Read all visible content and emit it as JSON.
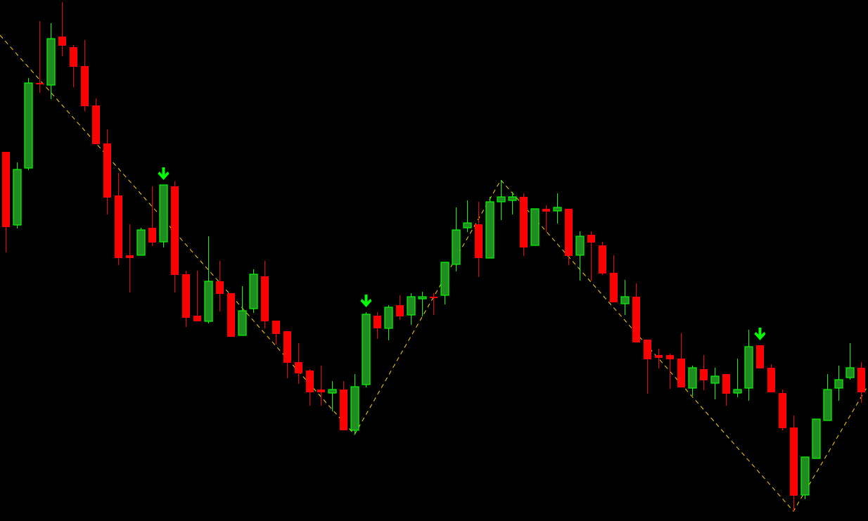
{
  "chart_data": {
    "type": "candlestick",
    "title": "",
    "xlabel": "",
    "ylabel": "",
    "ylim": [
      0,
      741
    ],
    "grid": false,
    "colors": {
      "background": "#000000",
      "bull_fill": "#228B22",
      "bull_outline": "#00FF00",
      "bear": "#FF0000",
      "zigzag": "#FFD700",
      "signal_arrow": "#00FF00"
    },
    "candles": [
      {
        "o": 525,
        "h": 525,
        "l": 382,
        "c": 418
      },
      {
        "o": 421,
        "h": 510,
        "l": 416,
        "c": 500
      },
      {
        "o": 502,
        "h": 630,
        "l": 499,
        "c": 623
      },
      {
        "o": 623,
        "h": 711,
        "l": 609,
        "c": 623
      },
      {
        "o": 620,
        "h": 708,
        "l": 600,
        "c": 686
      },
      {
        "o": 689,
        "h": 738,
        "l": 661,
        "c": 676
      },
      {
        "o": 674,
        "h": 677,
        "l": 617,
        "c": 646
      },
      {
        "o": 647,
        "h": 684,
        "l": 583,
        "c": 590
      },
      {
        "o": 591,
        "h": 601,
        "l": 536,
        "c": 536
      },
      {
        "o": 537,
        "h": 557,
        "l": 436,
        "c": 460
      },
      {
        "o": 463,
        "h": 495,
        "l": 364,
        "c": 374
      },
      {
        "o": 378,
        "h": 422,
        "l": 325,
        "c": 374
      },
      {
        "o": 378,
        "h": 417,
        "l": 378,
        "c": 414
      },
      {
        "o": 417,
        "h": 476,
        "l": 391,
        "c": 396
      },
      {
        "o": 397,
        "h": 478,
        "l": 389,
        "c": 478
      },
      {
        "o": 476,
        "h": 483,
        "l": 325,
        "c": 350
      },
      {
        "o": 351,
        "h": 356,
        "l": 276,
        "c": 289
      },
      {
        "o": 292,
        "h": 356,
        "l": 284,
        "c": 284
      },
      {
        "o": 284,
        "h": 405,
        "l": 281,
        "c": 341
      },
      {
        "o": 341,
        "h": 370,
        "l": 298,
        "c": 323
      },
      {
        "o": 324,
        "h": 324,
        "l": 262,
        "c": 262
      },
      {
        "o": 264,
        "h": 334,
        "l": 264,
        "c": 299
      },
      {
        "o": 302,
        "h": 358,
        "l": 296,
        "c": 351
      },
      {
        "o": 348,
        "h": 370,
        "l": 274,
        "c": 284
      },
      {
        "o": 285,
        "h": 285,
        "l": 251,
        "c": 266
      },
      {
        "o": 270,
        "h": 270,
        "l": 203,
        "c": 225
      },
      {
        "o": 226,
        "h": 253,
        "l": 195,
        "c": 210
      },
      {
        "o": 214,
        "h": 216,
        "l": 164,
        "c": 183
      },
      {
        "o": 187,
        "h": 221,
        "l": 164,
        "c": 183
      },
      {
        "o": 182,
        "h": 199,
        "l": 156,
        "c": 187
      },
      {
        "o": 187,
        "h": 199,
        "l": 129,
        "c": 129
      },
      {
        "o": 129,
        "h": 209,
        "l": 123,
        "c": 191
      },
      {
        "o": 194,
        "h": 297,
        "l": 190,
        "c": 294
      },
      {
        "o": 292,
        "h": 297,
        "l": 259,
        "c": 274
      },
      {
        "o": 274,
        "h": 307,
        "l": 257,
        "c": 304
      },
      {
        "o": 307,
        "h": 321,
        "l": 286,
        "c": 291
      },
      {
        "o": 293,
        "h": 324,
        "l": 279,
        "c": 319
      },
      {
        "o": 316,
        "h": 326,
        "l": 291,
        "c": 319
      },
      {
        "o": 319,
        "h": 324,
        "l": 293,
        "c": 319
      },
      {
        "o": 321,
        "h": 368,
        "l": 308,
        "c": 368
      },
      {
        "o": 365,
        "h": 446,
        "l": 355,
        "c": 414
      },
      {
        "o": 417,
        "h": 456,
        "l": 411,
        "c": 424
      },
      {
        "o": 422,
        "h": 454,
        "l": 347,
        "c": 374
      },
      {
        "o": 374,
        "h": 461,
        "l": 374,
        "c": 454
      },
      {
        "o": 454,
        "h": 485,
        "l": 428,
        "c": 461
      },
      {
        "o": 456,
        "h": 468,
        "l": 436,
        "c": 461
      },
      {
        "o": 461,
        "h": 466,
        "l": 377,
        "c": 389
      },
      {
        "o": 392,
        "h": 444,
        "l": 392,
        "c": 444
      },
      {
        "o": 444,
        "h": 449,
        "l": 411,
        "c": 440
      },
      {
        "o": 441,
        "h": 466,
        "l": 423,
        "c": 446
      },
      {
        "o": 444,
        "h": 444,
        "l": 364,
        "c": 377
      },
      {
        "o": 378,
        "h": 412,
        "l": 342,
        "c": 405
      },
      {
        "o": 407,
        "h": 412,
        "l": 342,
        "c": 396
      },
      {
        "o": 392,
        "h": 397,
        "l": 350,
        "c": 352
      },
      {
        "o": 353,
        "h": 378,
        "l": 311,
        "c": 311
      },
      {
        "o": 309,
        "h": 343,
        "l": 293,
        "c": 319
      },
      {
        "o": 319,
        "h": 338,
        "l": 254,
        "c": 254
      },
      {
        "o": 258,
        "h": 258,
        "l": 181,
        "c": 230
      },
      {
        "o": 236,
        "h": 245,
        "l": 217,
        "c": 232
      },
      {
        "o": 236,
        "h": 238,
        "l": 188,
        "c": 230
      },
      {
        "o": 231,
        "h": 267,
        "l": 190,
        "c": 190
      },
      {
        "o": 189,
        "h": 221,
        "l": 178,
        "c": 218
      },
      {
        "o": 216,
        "h": 236,
        "l": 186,
        "c": 200
      },
      {
        "o": 196,
        "h": 218,
        "l": 173,
        "c": 206
      },
      {
        "o": 209,
        "h": 209,
        "l": 164,
        "c": 181
      },
      {
        "o": 182,
        "h": 231,
        "l": 176,
        "c": 187
      },
      {
        "o": 189,
        "h": 272,
        "l": 171,
        "c": 248
      },
      {
        "o": 250,
        "h": 250,
        "l": 217,
        "c": 217
      },
      {
        "o": 218,
        "h": 223,
        "l": 183,
        "c": 183
      },
      {
        "o": 182,
        "h": 187,
        "l": 129,
        "c": 132
      },
      {
        "o": 133,
        "h": 150,
        "l": 14,
        "c": 36
      },
      {
        "o": 37,
        "h": 91,
        "l": 31,
        "c": 91
      },
      {
        "o": 89,
        "h": 145,
        "l": 89,
        "c": 145
      },
      {
        "o": 143,
        "h": 209,
        "l": 143,
        "c": 187
      },
      {
        "o": 189,
        "h": 221,
        "l": 171,
        "c": 201
      },
      {
        "o": 204,
        "h": 253,
        "l": 201,
        "c": 218
      },
      {
        "o": 218,
        "h": 226,
        "l": 168,
        "c": 183
      }
    ],
    "signal_arrows": [
      14,
      32,
      67
    ],
    "zigzag": [
      {
        "index": -0.5,
        "price": 691
      },
      {
        "index": 31,
        "price": 123
      },
      {
        "index": 44,
        "price": 485
      },
      {
        "index": 70,
        "price": 14
      },
      {
        "index": 76.6,
        "price": 192
      }
    ]
  }
}
